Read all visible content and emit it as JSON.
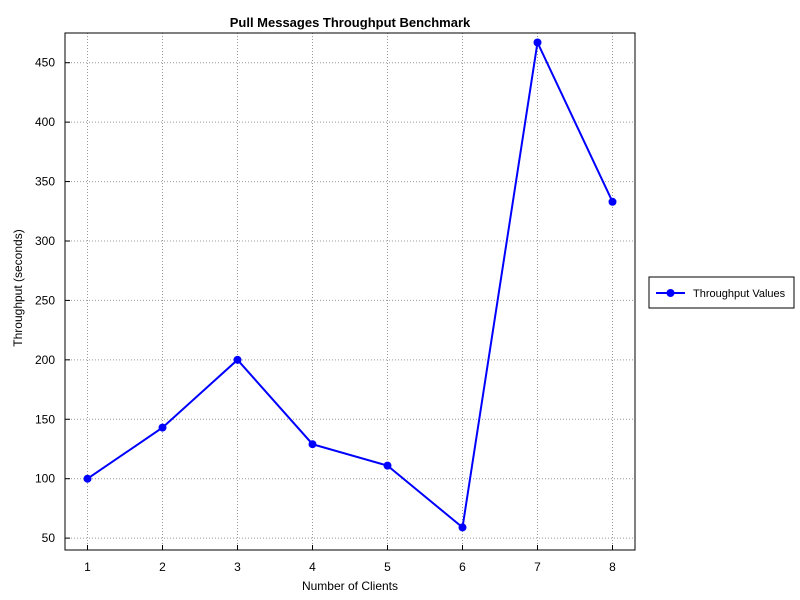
{
  "chart_data": {
    "type": "line",
    "title": "Pull Messages Throughput Benchmark",
    "xlabel": "Number of Clients",
    "ylabel": "Throughput (seconds)",
    "x": [
      1,
      2,
      3,
      4,
      5,
      6,
      7,
      8
    ],
    "series": [
      {
        "name": "Throughput Values",
        "color": "#0000ff",
        "marker": "circle",
        "values": [
          100,
          143,
          200,
          129,
          111,
          59,
          467,
          333
        ]
      }
    ],
    "xlim": [
      0.7,
      8.3
    ],
    "ylim": [
      40,
      475
    ],
    "xticks": [
      1,
      2,
      3,
      4,
      5,
      6,
      7,
      8
    ],
    "yticks": [
      50,
      100,
      150,
      200,
      250,
      300,
      350,
      400,
      450
    ],
    "grid": true,
    "grid_style": "dotted",
    "legend_position": "right"
  }
}
